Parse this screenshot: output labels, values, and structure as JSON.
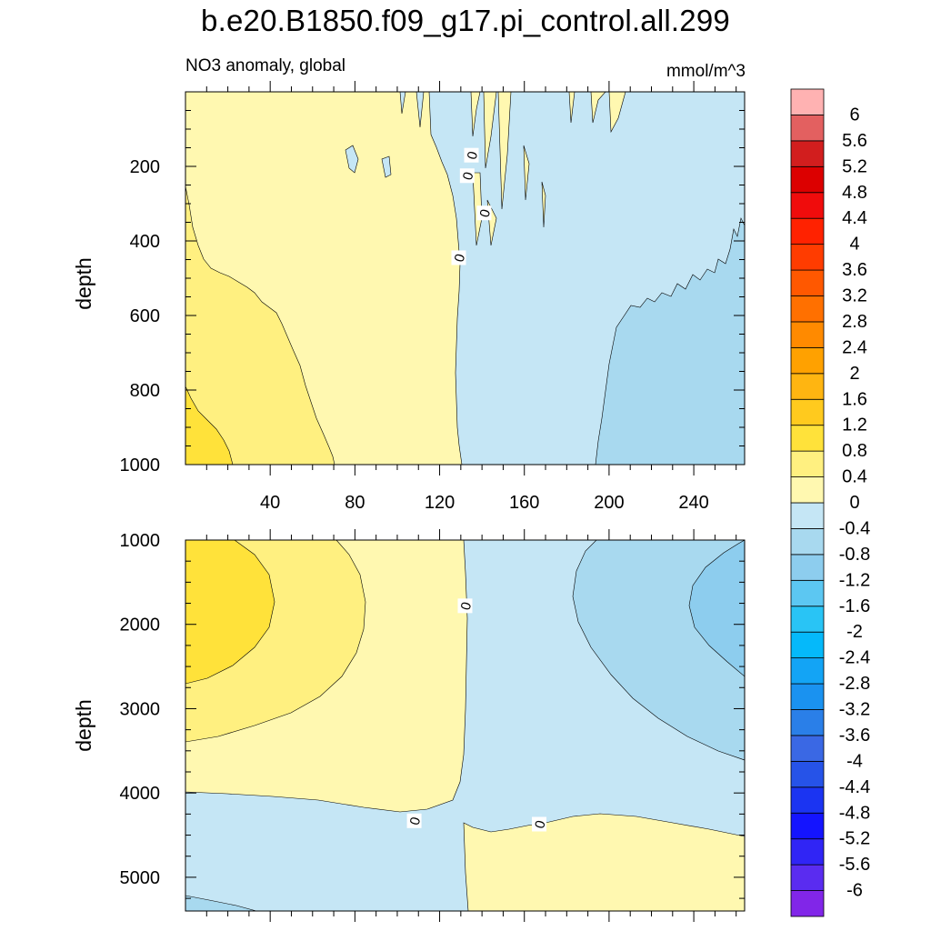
{
  "page": {
    "title": "b.e20.B1850.f09_g17.pi_control.all.299",
    "subtitle_left": "NO3 anomaly, global",
    "subtitle_right": "mmol/m^3"
  },
  "colors": {
    "background": "#ffffff",
    "contour_line": "#000000"
  },
  "chart_data": [
    {
      "type": "heatmap",
      "panel": "upper",
      "title": "NO3 anomaly, global",
      "units": "mmol/m^3",
      "xlabel": "",
      "ylabel": "depth",
      "xlim": [
        0,
        264
      ],
      "ylim": [
        1000,
        0
      ],
      "xticks": [
        40,
        80,
        120,
        160,
        200,
        240
      ],
      "yticks": [
        200,
        400,
        600,
        800,
        1000
      ],
      "contour_labels": [
        {
          "text": "0",
          "x": 135,
          "y": 170
        },
        {
          "text": "0",
          "x": 133,
          "y": 225
        },
        {
          "text": "0",
          "x": 141,
          "y": 325
        },
        {
          "text": "0",
          "x": 129,
          "y": 445
        }
      ],
      "regions": [
        {
          "range": [
            0,
            0.4
          ],
          "color": "#fff8b0",
          "description": "x 0-128"
        },
        {
          "range": [
            0.4,
            0.8
          ],
          "color": "#fff080",
          "description": "deep left wedge"
        },
        {
          "range": [
            0.8,
            1.2
          ],
          "color": "#ffe23a",
          "description": "bottom-left corner"
        },
        {
          "range": [
            -0.4,
            0
          ],
          "color": "#c5e6f5",
          "description": "x 128-264"
        },
        {
          "range": [
            -0.8,
            -0.4
          ],
          "color": "#a8d9ef",
          "description": "deep right"
        }
      ]
    },
    {
      "type": "heatmap",
      "panel": "lower",
      "xlabel": "",
      "ylabel": "depth",
      "xlim": [
        0,
        264
      ],
      "ylim": [
        5400,
        1000
      ],
      "yticks": [
        1000,
        2000,
        3000,
        4000,
        5000
      ],
      "contour_labels": [
        {
          "text": "0",
          "x": 132,
          "y": 1780
        },
        {
          "text": "0",
          "x": 108,
          "y": 4330
        },
        {
          "text": "0",
          "x": 167,
          "y": 4370
        }
      ],
      "regions": [
        {
          "range": [
            0.8,
            1.2
          ],
          "color": "#ffe23a",
          "description": "upper-left core"
        },
        {
          "range": [
            0.4,
            0.8
          ],
          "color": "#fff080",
          "description": "upper-left"
        },
        {
          "range": [
            0,
            0.4
          ],
          "color": "#fff8b0",
          "description": "left / bottom-right"
        },
        {
          "range": [
            -0.4,
            0
          ],
          "color": "#c5e6f5",
          "description": "center"
        },
        {
          "range": [
            -0.8,
            -0.4
          ],
          "color": "#a8d9ef",
          "description": "right"
        },
        {
          "range": [
            -1.2,
            -0.8
          ],
          "color": "#8dcdee",
          "description": "upper-right core"
        }
      ]
    }
  ],
  "colorbar": {
    "colors": [
      "#8126e8",
      "#5a2cf0",
      "#3025f5",
      "#1414ff",
      "#1b34f2",
      "#2653e8",
      "#3a68e4",
      "#2a7fe8",
      "#1a92f0",
      "#13a4f5",
      "#05b9fa",
      "#29c4f5",
      "#5cc7f2",
      "#8dcdee",
      "#a8d9ef",
      "#c5e6f5",
      "#fff8b0",
      "#fff080",
      "#ffe23a",
      "#ffca1e",
      "#ffb511",
      "#ffa100",
      "#ff8a00",
      "#ff7000",
      "#ff5800",
      "#ff3c00",
      "#ff2200",
      "#f00c0c",
      "#dc0000",
      "#d21e1e",
      "#e36060",
      "#ffb2b2"
    ],
    "labels": [
      "-6",
      "-5.6",
      "-5.2",
      "-4.8",
      "-4.4",
      "-4",
      "-3.6",
      "-3.2",
      "-2.8",
      "-2.4",
      "-2",
      "-1.6",
      "-1.2",
      "-0.8",
      "-0.4",
      "0",
      "0.4",
      "0.8",
      "1.2",
      "1.6",
      "2",
      "2.4",
      "2.8",
      "3.2",
      "3.6",
      "4",
      "4.4",
      "4.8",
      "5.2",
      "5.6",
      "6"
    ]
  }
}
